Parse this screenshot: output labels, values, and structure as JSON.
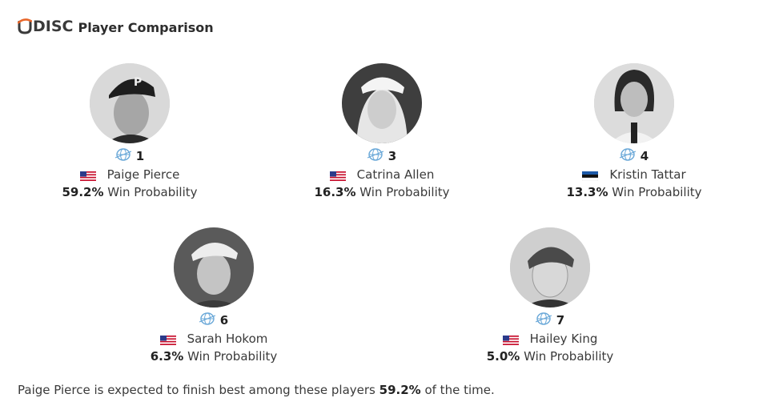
{
  "header": {
    "logo_text": "DISC",
    "logo_u": "U",
    "title": "Player Comparison"
  },
  "colors": {
    "logo_accent": "#e8662a",
    "text": "#3a3a3a",
    "rank_icon": "#6aa8d8"
  },
  "players": [
    {
      "rank": "1",
      "name": "Paige Pierce",
      "flag": "us-flag-icon",
      "prob": "59.2%",
      "prob_suffix": " Win Probability"
    },
    {
      "rank": "3",
      "name": "Catrina Allen",
      "flag": "us-flag-icon",
      "prob": "16.3%",
      "prob_suffix": " Win Probability"
    },
    {
      "rank": "4",
      "name": "Kristin Tattar",
      "flag": "estonia-flag-icon",
      "prob": "13.3%",
      "prob_suffix": " Win Probability"
    },
    {
      "rank": "6",
      "name": "Sarah Hokom",
      "flag": "us-flag-icon",
      "prob": "6.3%",
      "prob_suffix": " Win Probability"
    },
    {
      "rank": "7",
      "name": "Hailey King",
      "flag": "us-flag-icon",
      "prob": "5.0%",
      "prob_suffix": " Win Probability"
    }
  ],
  "footer": {
    "prefix": "Paige Pierce is expected to finish best among these players ",
    "value": "59.2%",
    "suffix": " of the time."
  }
}
